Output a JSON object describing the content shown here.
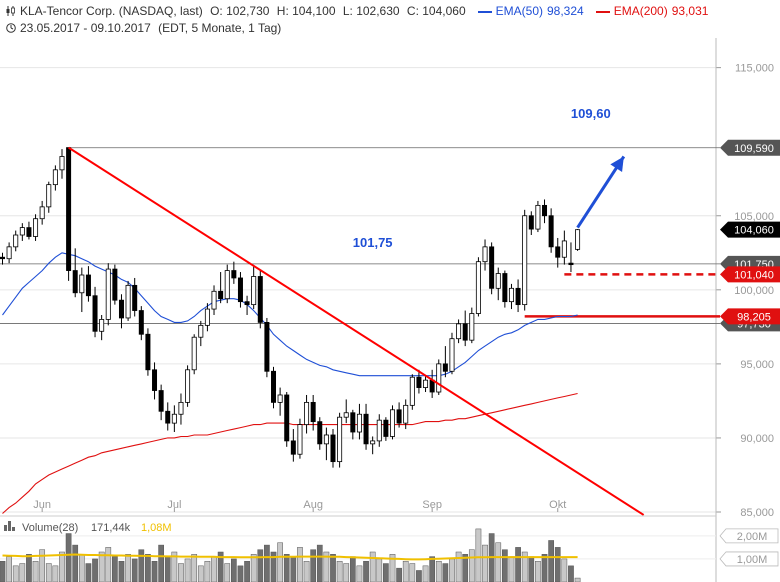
{
  "header": {
    "symbol_line": "KLA-Tencor Corp. (NASDAQ, last)",
    "open": "O: 102,730",
    "high": "H: 104,100",
    "low": "L: 102,630",
    "close": "C: 104,060",
    "ema50_label": "EMA(50)",
    "ema50_value": "98,324",
    "ema200_label": "EMA(200)",
    "ema200_value": "93,031",
    "range": "23.05.2017 - 09.10.2017",
    "settings": "(EDT, 5 Monate, 1 Tag)"
  },
  "colors": {
    "up": "#ffffff",
    "down": "#000000",
    "ema50": "#1f4fd6",
    "ema200": "#e01010",
    "trend": "#ff0000",
    "arrow": "#1f4fd6",
    "volume_avg": "#f0c000"
  },
  "chart_data": {
    "type": "candlestick",
    "ylim": [
      85,
      117
    ],
    "y_ticks": [
      "85,000",
      "90,000",
      "95,000",
      "100,000",
      "105,000",
      "115,000"
    ],
    "x_ticks": [
      "Jun",
      "Jul",
      "Aug",
      "Sep",
      "Okt"
    ],
    "candles": [
      [
        102.2,
        102.5,
        101.7,
        102.1
      ],
      [
        102.1,
        103.2,
        101.8,
        102.9
      ],
      [
        102.9,
        104.0,
        102.6,
        103.7
      ],
      [
        103.7,
        104.5,
        103.3,
        104.2
      ],
      [
        104.2,
        104.6,
        103.4,
        103.6
      ],
      [
        103.6,
        105.1,
        103.3,
        104.8
      ],
      [
        104.8,
        106.0,
        104.4,
        105.6
      ],
      [
        105.6,
        107.3,
        105.2,
        107.1
      ],
      [
        107.1,
        108.4,
        106.7,
        108.1
      ],
      [
        108.1,
        109.5,
        107.5,
        109.0
      ],
      [
        109.6,
        109.6,
        100.6,
        101.3
      ],
      [
        101.3,
        102.8,
        99.5,
        99.8
      ],
      [
        99.8,
        101.5,
        98.5,
        101.0
      ],
      [
        101.0,
        101.6,
        99.2,
        99.6
      ],
      [
        99.6,
        100.2,
        96.8,
        97.2
      ],
      [
        97.2,
        98.3,
        96.6,
        98.0
      ],
      [
        98.0,
        101.8,
        97.6,
        101.4
      ],
      [
        101.4,
        101.7,
        99.0,
        99.3
      ],
      [
        99.3,
        99.7,
        97.4,
        98.1
      ],
      [
        98.1,
        100.6,
        97.9,
        100.3
      ],
      [
        100.3,
        100.8,
        98.2,
        98.6
      ],
      [
        98.6,
        98.9,
        96.6,
        97.0
      ],
      [
        97.0,
        97.4,
        94.2,
        94.6
      ],
      [
        94.6,
        95.1,
        92.6,
        93.2
      ],
      [
        93.2,
        93.6,
        91.2,
        91.8
      ],
      [
        91.8,
        92.4,
        90.5,
        91.0
      ],
      [
        91.0,
        92.2,
        90.4,
        91.6
      ],
      [
        91.6,
        93.0,
        90.9,
        92.4
      ],
      [
        92.4,
        94.9,
        92.1,
        94.6
      ],
      [
        94.6,
        97.0,
        94.3,
        96.8
      ],
      [
        96.8,
        97.9,
        96.2,
        97.6
      ],
      [
        97.6,
        99.1,
        97.2,
        98.7
      ],
      [
        98.7,
        100.3,
        98.3,
        99.9
      ],
      [
        99.9,
        101.2,
        99.1,
        99.4
      ],
      [
        99.4,
        101.7,
        99.1,
        101.3
      ],
      [
        101.3,
        101.9,
        100.4,
        100.8
      ],
      [
        100.8,
        101.2,
        98.8,
        99.2
      ],
      [
        99.2,
        99.6,
        98.3,
        99.0
      ],
      [
        99.0,
        101.6,
        98.7,
        100.9
      ],
      [
        100.9,
        101.3,
        97.4,
        97.8
      ],
      [
        97.8,
        98.1,
        94.1,
        94.5
      ],
      [
        94.5,
        94.8,
        92.0,
        92.4
      ],
      [
        92.4,
        93.4,
        91.5,
        92.9
      ],
      [
        92.9,
        93.1,
        89.4,
        89.8
      ],
      [
        89.8,
        90.6,
        88.4,
        88.9
      ],
      [
        88.9,
        91.3,
        88.6,
        90.9
      ],
      [
        90.9,
        92.9,
        90.3,
        92.4
      ],
      [
        92.4,
        92.9,
        90.5,
        91.1
      ],
      [
        91.1,
        91.4,
        89.2,
        89.6
      ],
      [
        89.6,
        90.7,
        88.5,
        90.2
      ],
      [
        90.2,
        90.6,
        88.0,
        88.4
      ],
      [
        88.4,
        91.7,
        88.0,
        91.4
      ],
      [
        91.4,
        92.6,
        91.0,
        91.7
      ],
      [
        91.7,
        91.9,
        89.9,
        90.4
      ],
      [
        90.4,
        92.3,
        89.9,
        91.6
      ],
      [
        91.6,
        92.3,
        89.2,
        89.6
      ],
      [
        89.6,
        90.1,
        88.9,
        89.8
      ],
      [
        89.8,
        91.6,
        89.4,
        91.2
      ],
      [
        91.2,
        91.4,
        89.8,
        90.1
      ],
      [
        90.1,
        92.2,
        89.9,
        91.9
      ],
      [
        91.9,
        92.4,
        90.7,
        91.0
      ],
      [
        91.0,
        92.6,
        90.6,
        92.2
      ],
      [
        92.2,
        94.3,
        91.9,
        94.1
      ],
      [
        94.1,
        94.6,
        93.0,
        93.4
      ],
      [
        93.4,
        94.2,
        93.1,
        93.9
      ],
      [
        93.9,
        94.6,
        92.7,
        93.1
      ],
      [
        93.1,
        95.3,
        92.9,
        95.0
      ],
      [
        95.0,
        96.2,
        94.1,
        94.5
      ],
      [
        94.5,
        97.1,
        94.3,
        96.7
      ],
      [
        96.7,
        98.0,
        96.4,
        97.7
      ],
      [
        97.7,
        98.6,
        96.2,
        96.6
      ],
      [
        96.6,
        98.8,
        96.4,
        98.4
      ],
      [
        98.4,
        102.2,
        98.2,
        101.9
      ],
      [
        101.9,
        103.4,
        101.3,
        102.9
      ],
      [
        102.9,
        103.2,
        99.7,
        100.1
      ],
      [
        100.1,
        101.5,
        99.3,
        101.1
      ],
      [
        101.1,
        101.3,
        98.8,
        99.2
      ],
      [
        99.2,
        100.4,
        98.7,
        100.1
      ],
      [
        100.1,
        100.7,
        98.5,
        99.0
      ],
      [
        99.0,
        105.4,
        98.6,
        105.0
      ],
      [
        105.0,
        105.3,
        103.7,
        104.1
      ],
      [
        104.1,
        106.0,
        103.9,
        105.7
      ],
      [
        105.7,
        106.1,
        104.5,
        105.0
      ],
      [
        105.0,
        105.5,
        102.5,
        102.9
      ],
      [
        102.9,
        103.5,
        101.5,
        102.2
      ],
      [
        102.2,
        104.0,
        101.7,
        103.3
      ],
      [
        101.8,
        103.2,
        101.2,
        101.7
      ],
      [
        102.73,
        104.1,
        102.63,
        104.06
      ]
    ],
    "ema50": [
      98.3,
      98.9,
      99.5,
      100.1,
      100.5,
      100.9,
      101.3,
      101.8,
      102.2,
      102.5,
      102.4,
      102.3,
      102.1,
      101.9,
      101.6,
      101.4,
      101.2,
      101.0,
      100.7,
      100.5,
      100.1,
      99.6,
      99.1,
      98.6,
      98.2,
      98.0,
      97.8,
      97.8,
      97.9,
      98.2,
      98.6,
      98.9,
      99.2,
      99.3,
      99.4,
      99.4,
      99.3,
      99.0,
      98.6,
      98.1,
      97.6,
      97.0,
      96.6,
      96.2,
      95.9,
      95.6,
      95.3,
      95.1,
      94.9,
      94.8,
      94.6,
      94.5,
      94.4,
      94.3,
      94.2,
      94.2,
      94.2,
      94.2,
      94.2,
      94.2,
      94.2,
      94.2,
      94.2,
      94.2,
      94.2,
      94.2,
      94.2,
      94.3,
      94.5,
      94.8,
      95.1,
      95.5,
      95.9,
      96.2,
      96.5,
      96.8,
      97.0,
      97.1,
      97.3,
      97.6,
      97.8,
      98.0,
      98.0,
      98.1,
      98.2,
      98.2,
      98.2,
      98.3
    ],
    "ema200": [
      84.9,
      85.3,
      85.6,
      86.0,
      86.4,
      86.9,
      87.2,
      87.5,
      87.7,
      87.9,
      88.1,
      88.3,
      88.5,
      88.7,
      88.8,
      89.0,
      89.1,
      89.2,
      89.3,
      89.4,
      89.5,
      89.6,
      89.7,
      89.8,
      89.9,
      90.0,
      90.0,
      90.1,
      90.1,
      90.2,
      90.2,
      90.2,
      90.3,
      90.4,
      90.5,
      90.6,
      90.7,
      90.8,
      90.9,
      90.9,
      91.0,
      91.0,
      91.0,
      91.0,
      90.9,
      90.9,
      90.9,
      90.9,
      90.9,
      90.9,
      90.9,
      90.9,
      90.9,
      90.9,
      90.9,
      90.9,
      90.9,
      90.9,
      90.9,
      90.9,
      90.9,
      90.9,
      90.9,
      91.0,
      91.1,
      91.1,
      91.1,
      91.2,
      91.2,
      91.3,
      91.3,
      91.4,
      91.5,
      91.6,
      91.7,
      91.8,
      91.9,
      92.0,
      92.1,
      92.2,
      92.3,
      92.4,
      92.5,
      92.6,
      92.7,
      92.8,
      92.9,
      93.0
    ],
    "hlines": [
      {
        "value": 109.59,
        "label": "109,590",
        "color": "#666666",
        "box": "#555555",
        "style": "solid"
      },
      {
        "value": 101.75,
        "label": "101,750",
        "color": "#666666",
        "box": "#555555",
        "style": "solid"
      },
      {
        "value": 97.73,
        "label": "97,730",
        "color": "#666666",
        "box": "#555555",
        "style": "solid"
      },
      {
        "value": 104.06,
        "label": "104,060",
        "color": "#000000",
        "box": "#000000",
        "style": "none"
      },
      {
        "value": 101.04,
        "label": "101,040",
        "color": "#e01010",
        "box": "#e01010",
        "style": "dashed"
      },
      {
        "value": 98.205,
        "label": "98,205",
        "color": "#e01010",
        "box": "#e01010",
        "style": "solid"
      }
    ],
    "annotations": [
      {
        "text": "109,60",
        "color": "#1f4fd6"
      },
      {
        "text": "101,75",
        "color": "#1f4fd6"
      }
    ],
    "trendline": {
      "from": {
        "index": 10,
        "value": 109.6
      },
      "to": {
        "index": 97,
        "value": 84.8
      }
    },
    "arrow": {
      "from": {
        "index": 87,
        "value": 104.2
      },
      "to": {
        "index": 94,
        "value": 109.0
      }
    },
    "volume": {
      "label": "Volume(28)",
      "value": "171,44k",
      "avg_value": "1,08M",
      "y_ticks": [
        "2,00M",
        "1,00M"
      ],
      "ylim": [
        0,
        2.6
      ],
      "bars": [
        0.9,
        1.1,
        0.7,
        0.8,
        1.2,
        0.9,
        1.4,
        0.8,
        0.7,
        1.3,
        2.1,
        1.6,
        1.2,
        0.8,
        1.0,
        1.3,
        1.5,
        1.1,
        0.9,
        1.2,
        1.0,
        1.4,
        1.2,
        0.9,
        1.6,
        1.1,
        1.3,
        0.8,
        1.0,
        1.2,
        0.7,
        0.9,
        1.1,
        1.3,
        0.8,
        1.0,
        0.7,
        0.9,
        1.2,
        1.4,
        1.6,
        1.3,
        1.7,
        1.2,
        1.1,
        1.5,
        0.9,
        1.4,
        1.6,
        1.3,
        1.2,
        0.9,
        0.8,
        1.1,
        0.7,
        0.9,
        1.3,
        1.0,
        0.8,
        1.2,
        0.6,
        0.9,
        0.8,
        0.5,
        0.7,
        1.1,
        0.9,
        0.8,
        1.0,
        1.3,
        1.2,
        1.4,
        2.3,
        1.6,
        2.1,
        1.7,
        1.4,
        1.1,
        1.5,
        1.3,
        1.1,
        0.9,
        1.2,
        1.8,
        1.5,
        1.0,
        0.7,
        0.17
      ],
      "avg": [
        1.15,
        1.14,
        1.13,
        1.12,
        1.12,
        1.13,
        1.14,
        1.15,
        1.16,
        1.17,
        1.18,
        1.19,
        1.18,
        1.17,
        1.17,
        1.16,
        1.16,
        1.15,
        1.15,
        1.14,
        1.14,
        1.13,
        1.13,
        1.12,
        1.12,
        1.11,
        1.11,
        1.1,
        1.1,
        1.1,
        1.09,
        1.09,
        1.09,
        1.08,
        1.08,
        1.08,
        1.07,
        1.07,
        1.07,
        1.07,
        1.08,
        1.08,
        1.09,
        1.09,
        1.09,
        1.1,
        1.1,
        1.1,
        1.1,
        1.1,
        1.09,
        1.09,
        1.08,
        1.07,
        1.06,
        1.05,
        1.04,
        1.03,
        1.02,
        1.01,
        1.0,
        0.99,
        0.98,
        0.98,
        0.99,
        1.0,
        1.01,
        1.02,
        1.03,
        1.04,
        1.05,
        1.06,
        1.07,
        1.07,
        1.08,
        1.08,
        1.08,
        1.08,
        1.08,
        1.08,
        1.08,
        1.08,
        1.08,
        1.08,
        1.08,
        1.08,
        1.08,
        1.08
      ]
    }
  }
}
